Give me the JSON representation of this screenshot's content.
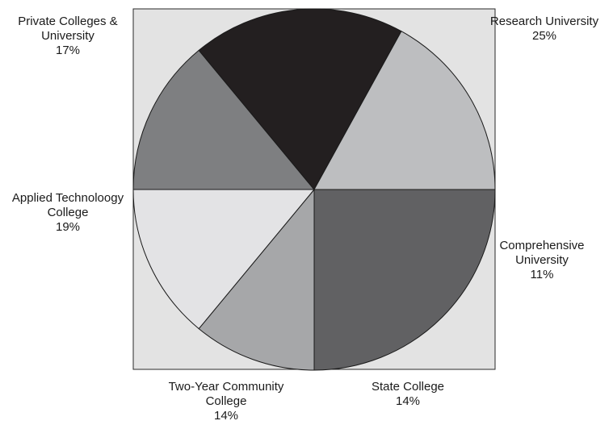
{
  "chart_data": {
    "type": "pie",
    "title": "",
    "start_angle_deg": 0,
    "direction": "clockwise",
    "background_color": "#e3e3e3",
    "slices": [
      {
        "label_lines": [
          "Research University"
        ],
        "value": 25,
        "value_label": "25%",
        "color": "#616163"
      },
      {
        "label_lines": [
          "Comprehensive",
          "University"
        ],
        "value": 11,
        "value_label": "11%",
        "color": "#a6a7a9"
      },
      {
        "label_lines": [
          "State College"
        ],
        "value": 14,
        "value_label": "14%",
        "color": "#e3e3e5"
      },
      {
        "label_lines": [
          "Two-Year Community",
          "College"
        ],
        "value": 14,
        "value_label": "14%",
        "color": "#7e7f81"
      },
      {
        "label_lines": [
          "Applied Technoloogy",
          "College"
        ],
        "value": 19,
        "value_label": "19%",
        "color": "#231f20"
      },
      {
        "label_lines": [
          "Private Colleges &",
          "University"
        ],
        "value": 17,
        "value_label": "17%",
        "color": "#bdbec0"
      }
    ]
  }
}
